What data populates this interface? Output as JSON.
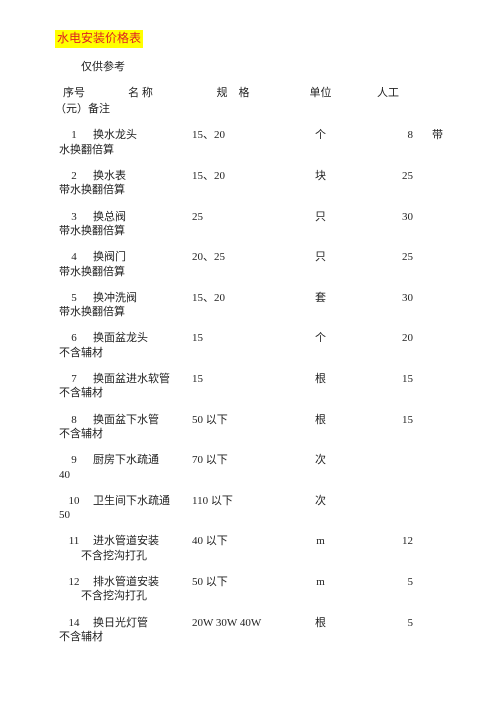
{
  "title": "水电安装价格表",
  "subtitle": "仅供参考",
  "header": {
    "num": "序号",
    "name": "名 称",
    "spec": "规　格",
    "unit": "单位",
    "price": "人工",
    "line2_prefix": "（元）",
    "line2_suffix": "备注"
  },
  "rows": [
    {
      "num": "1",
      "name": "换水龙头",
      "spec": "15、20",
      "unit": "个",
      "price": "8",
      "extra": "带",
      "remark": "水换翻倍算"
    },
    {
      "num": "2",
      "name": "换水表",
      "spec": "15、20",
      "unit": "块",
      "price": "25",
      "extra": "",
      "remark": "带水换翻倍算"
    },
    {
      "num": "3",
      "name": "换总阀",
      "spec": "25",
      "unit": "只",
      "price": "30",
      "extra": "",
      "remark": "带水换翻倍算"
    },
    {
      "num": "4",
      "name": "换阀门",
      "spec": "20、25",
      "unit": "只",
      "price": "25",
      "extra": "",
      "remark": "带水换翻倍算"
    },
    {
      "num": "5",
      "name": "换冲洗阀",
      "spec": "15、20",
      "unit": "套",
      "price": "30",
      "extra": "",
      "remark": "带水换翻倍算"
    },
    {
      "num": "6",
      "name": "换面盆龙头",
      "spec": "15",
      "unit": "个",
      "price": "20",
      "extra": "",
      "remark": "不含辅材"
    },
    {
      "num": "7",
      "name": "换面盆进水软管",
      "spec": "15",
      "unit": "根",
      "price": "15",
      "extra": "",
      "remark": "不含辅材"
    },
    {
      "num": "8",
      "name": "换面盆下水管",
      "spec": "50 以下",
      "unit": "根",
      "price": "15",
      "extra": "",
      "remark": "不含辅材"
    },
    {
      "num": "9",
      "name": "厨房下水疏通",
      "spec": "70 以下",
      "unit": "次",
      "price": "",
      "extra": "",
      "remark": "40"
    },
    {
      "num": "10",
      "name": "卫生间下水疏通",
      "spec": "110 以下",
      "unit": "次",
      "price": "",
      "extra": "",
      "remark": "50"
    },
    {
      "num": "11",
      "name": "进水管道安装",
      "spec": "40 以下",
      "unit": "m",
      "price": "12",
      "extra": "",
      "remark": "　　不含挖沟打孔"
    },
    {
      "num": "12",
      "name": "排水管道安装",
      "spec": "50 以下",
      "unit": "m",
      "price": "5",
      "extra": "",
      "remark": "　　不含挖沟打孔"
    },
    {
      "num": "14",
      "name": "换日光灯管",
      "spec": "20W 30W 40W",
      "unit": "根",
      "price": "5",
      "extra": "",
      "remark": "不含辅材"
    }
  ]
}
